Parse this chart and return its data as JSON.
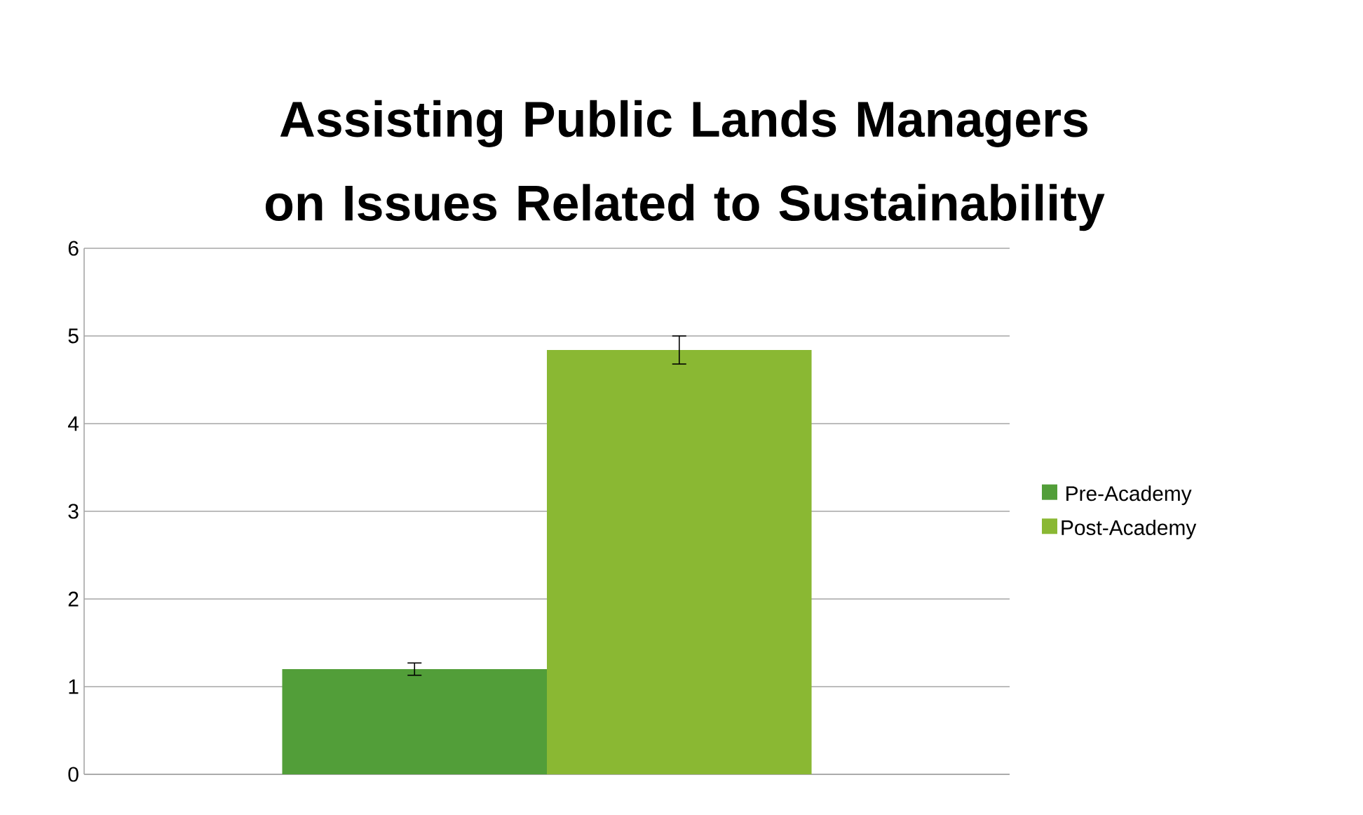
{
  "chart_data": {
    "type": "bar",
    "title": "Assisting Public Lands Managers on Issues Related to Sustainability",
    "categories": [
      null
    ],
    "series": [
      {
        "name": "Pre-Academy",
        "color": "#529e39",
        "values": [
          1.2
        ],
        "errors": [
          0.07
        ]
      },
      {
        "name": "Post-Academy",
        "color": "#8ab833",
        "values": [
          4.84
        ],
        "errors": [
          0.16
        ]
      }
    ],
    "ylim": [
      0,
      6
    ],
    "yticks": [
      0,
      1,
      2,
      3,
      4,
      5,
      6
    ],
    "grid": "y",
    "legend": "right"
  }
}
